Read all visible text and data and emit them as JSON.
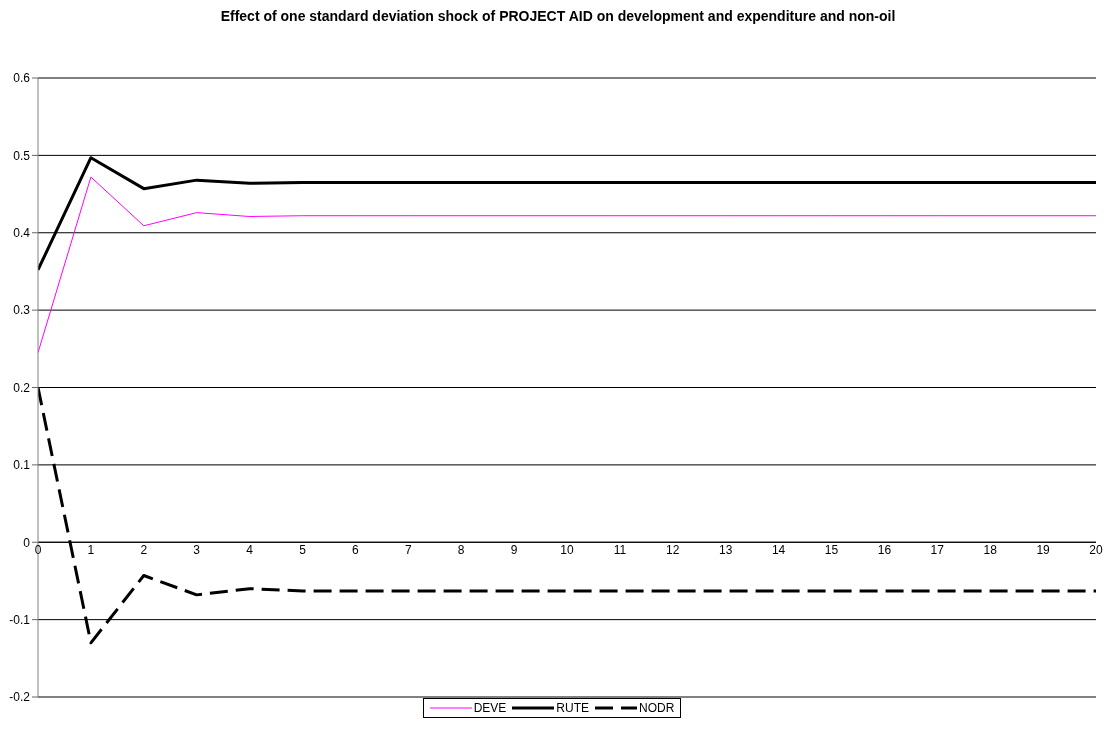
{
  "chart_data": {
    "type": "line",
    "title": "Effect of one standard deviation shock of PROJECT AID on development and expenditure and non-oil",
    "x": [
      0,
      1,
      2,
      3,
      4,
      5,
      6,
      7,
      8,
      9,
      10,
      11,
      12,
      13,
      14,
      15,
      16,
      17,
      18,
      19,
      20
    ],
    "series": [
      {
        "name": "DEVE",
        "color": "#ff00ff",
        "line_style": "solid",
        "values": [
          0.245,
          0.472,
          0.409,
          0.426,
          0.421,
          0.422,
          0.422,
          0.422,
          0.422,
          0.422,
          0.422,
          0.422,
          0.422,
          0.422,
          0.422,
          0.422,
          0.422,
          0.422,
          0.422,
          0.422,
          0.422
        ]
      },
      {
        "name": "RUTE",
        "color": "#000000",
        "line_style": "solid",
        "values": [
          0.352,
          0.497,
          0.457,
          0.468,
          0.464,
          0.465,
          0.465,
          0.465,
          0.465,
          0.465,
          0.465,
          0.465,
          0.465,
          0.465,
          0.465,
          0.465,
          0.465,
          0.465,
          0.465,
          0.465,
          0.465
        ]
      },
      {
        "name": "NODR",
        "color": "#000000",
        "line_style": "dashed",
        "values": [
          0.2,
          -0.13,
          -0.043,
          -0.068,
          -0.06,
          -0.063,
          -0.063,
          -0.063,
          -0.063,
          -0.063,
          -0.063,
          -0.063,
          -0.063,
          -0.063,
          -0.063,
          -0.063,
          -0.063,
          -0.063,
          -0.063,
          -0.063,
          -0.063
        ]
      }
    ],
    "xlim": [
      0,
      20
    ],
    "xticks": [
      0,
      1,
      2,
      3,
      4,
      5,
      6,
      7,
      8,
      9,
      10,
      11,
      12,
      13,
      14,
      15,
      16,
      17,
      18,
      19,
      20
    ],
    "ylim": [
      -0.2,
      0.6
    ],
    "yticks": [
      -0.2,
      -0.1,
      0,
      0.1,
      0.2,
      0.3,
      0.4,
      0.5,
      0.6
    ],
    "grid": "y",
    "legend": "bottom",
    "marker": "none"
  }
}
